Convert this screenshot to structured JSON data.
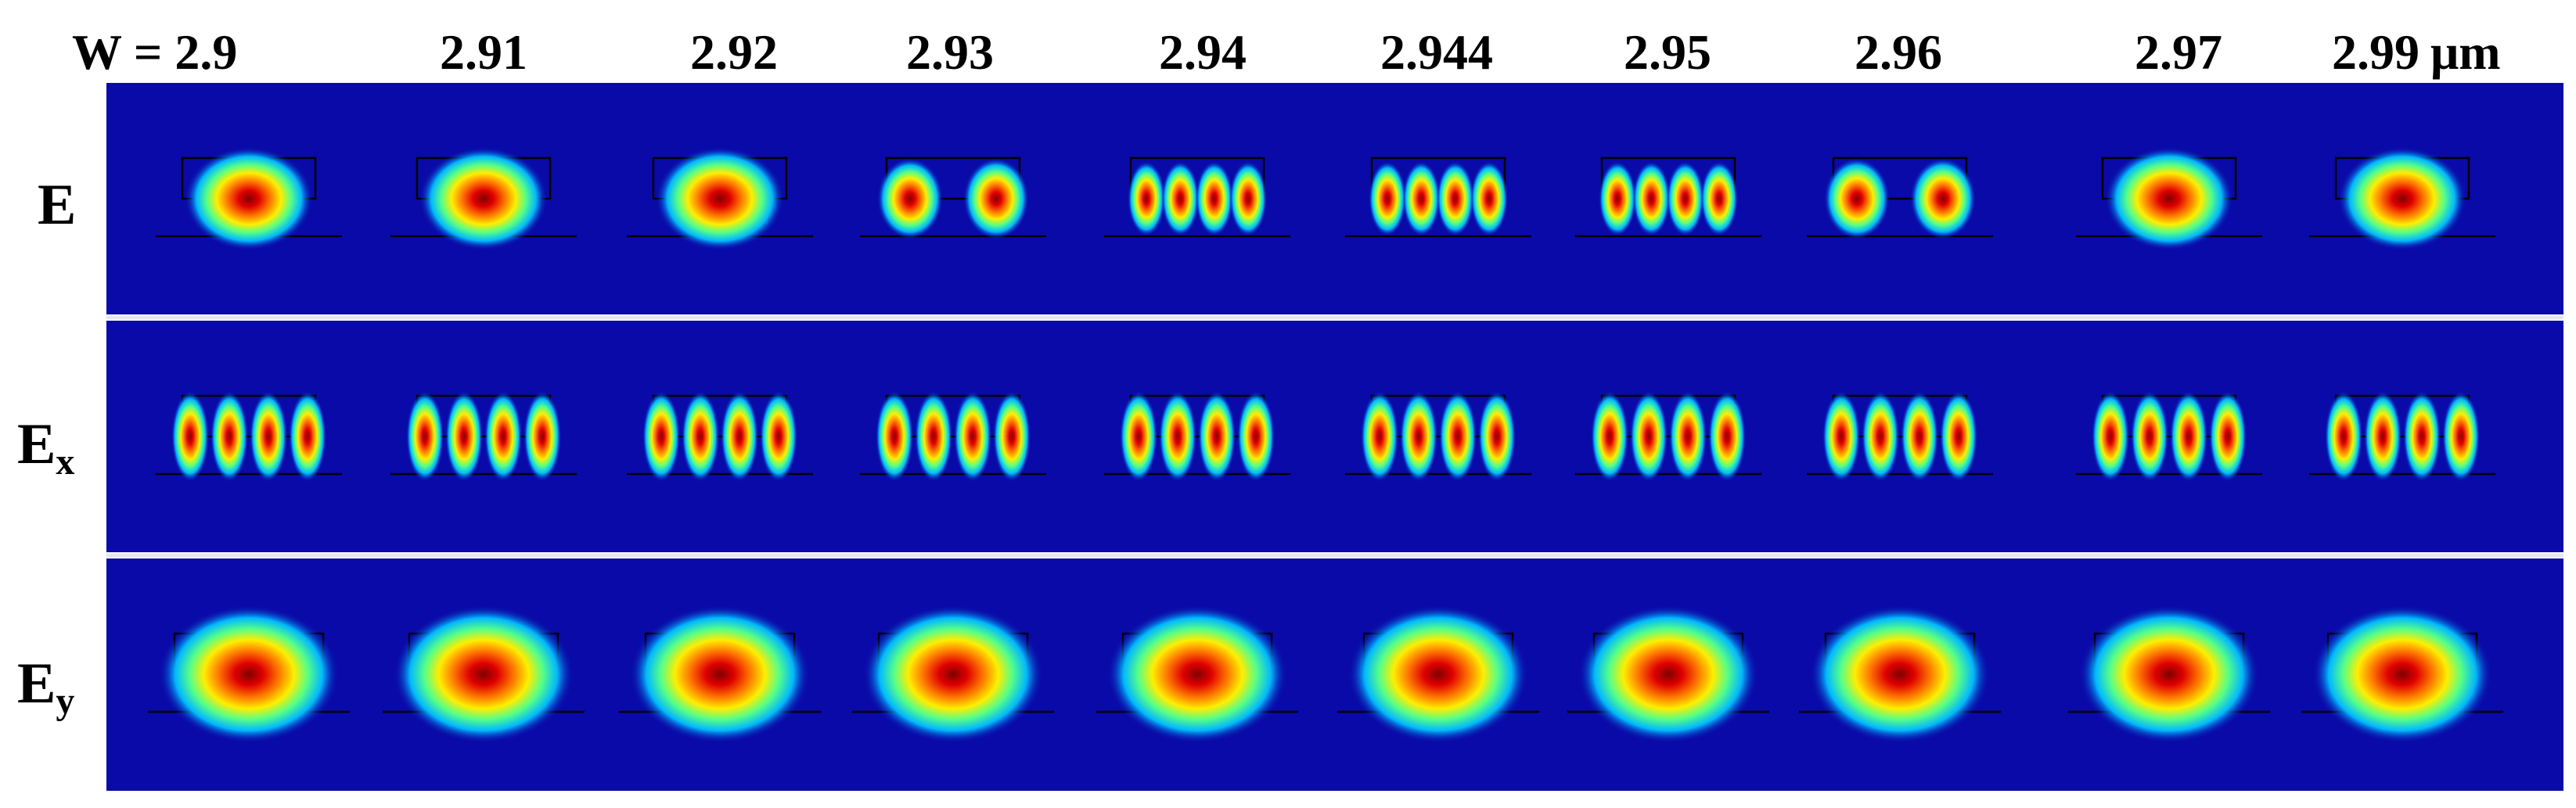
{
  "header": {
    "prefix": "W = ",
    "widths": [
      "2.9",
      "2.91",
      "2.92",
      "2.93",
      "2.94",
      "2.944",
      "2.95",
      "2.96",
      "2.97",
      "2.99"
    ],
    "unit": "μm"
  },
  "rows": [
    {
      "label": "E",
      "subscript": ""
    },
    {
      "label": "E",
      "subscript": "x"
    },
    {
      "label": "E",
      "subscript": "y"
    }
  ],
  "colors": {
    "background": "#0a0aa8",
    "divider": "#e6e6f0",
    "waveguide_line": "#000000"
  },
  "modes": {
    "E": {
      "lobes": [
        1,
        1,
        1,
        2,
        4,
        4,
        4,
        2,
        1,
        1
      ],
      "shape": "rounded rectangle; central field maximum; side lobes appear near W = 2.944"
    },
    "Ex": {
      "lobes": [
        4,
        4,
        4,
        4,
        4,
        4,
        4,
        4,
        4,
        4
      ],
      "shape": "four vertical lobes"
    },
    "Ey": {
      "lobes": [
        1,
        1,
        1,
        1,
        1,
        1,
        1,
        1,
        1,
        1
      ],
      "shape": "single broad rounded mode"
    }
  }
}
